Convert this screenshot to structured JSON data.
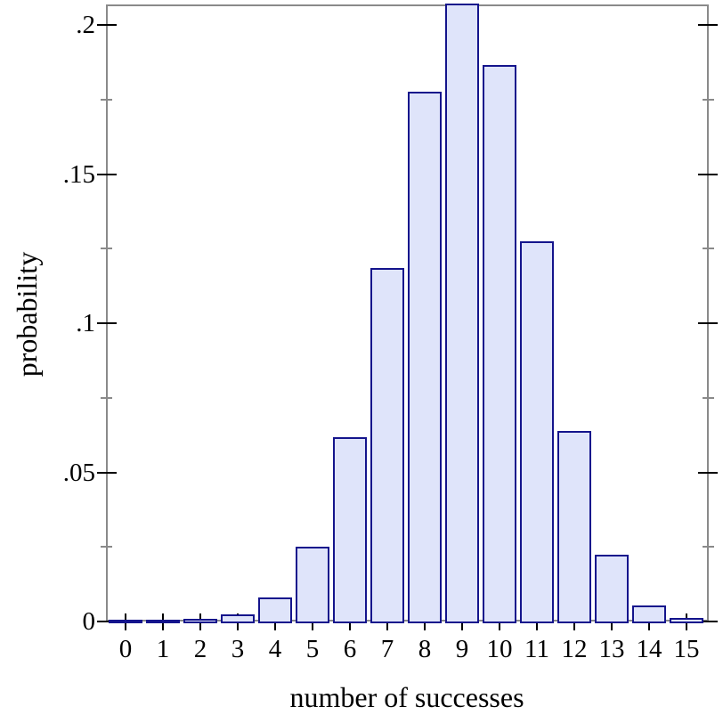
{
  "chart_data": {
    "type": "bar",
    "title": "",
    "xlabel": "number of successes",
    "ylabel": "probability",
    "categories": [
      "0",
      "1",
      "2",
      "3",
      "4",
      "5",
      "6",
      "7",
      "8",
      "9",
      "10",
      "11",
      "12",
      "13",
      "14",
      "15"
    ],
    "values": [
      1.1e-06,
      2.42e-05,
      0.000254,
      0.001649,
      0.00742,
      0.024486,
      0.061214,
      0.118056,
      0.177084,
      0.206598,
      0.185938,
      0.126776,
      0.063388,
      0.021942,
      0.004702,
      0.00047
    ],
    "xlim": [
      -0.5,
      15.5
    ],
    "ylim": [
      0,
      0.2066
    ],
    "grid": "off",
    "legend": "none",
    "y_axis": {
      "major_ticks": [
        {
          "value": 0.0,
          "label": "0"
        },
        {
          "value": 0.05,
          "label": ".05"
        },
        {
          "value": 0.1,
          "label": ".1"
        },
        {
          "value": 0.15,
          "label": ".15"
        },
        {
          "value": 0.2,
          "label": ".2"
        }
      ],
      "minor_ticks": [
        0.025,
        0.075,
        0.125,
        0.175
      ]
    },
    "colors": {
      "bar_fill": "#dfe4fa",
      "bar_border": "#14148c",
      "frame": "#8a8a8a",
      "major_tick": "#000000",
      "minor_tick": "#8a8a8a",
      "text": "#000000",
      "background": "#ffffff"
    }
  }
}
